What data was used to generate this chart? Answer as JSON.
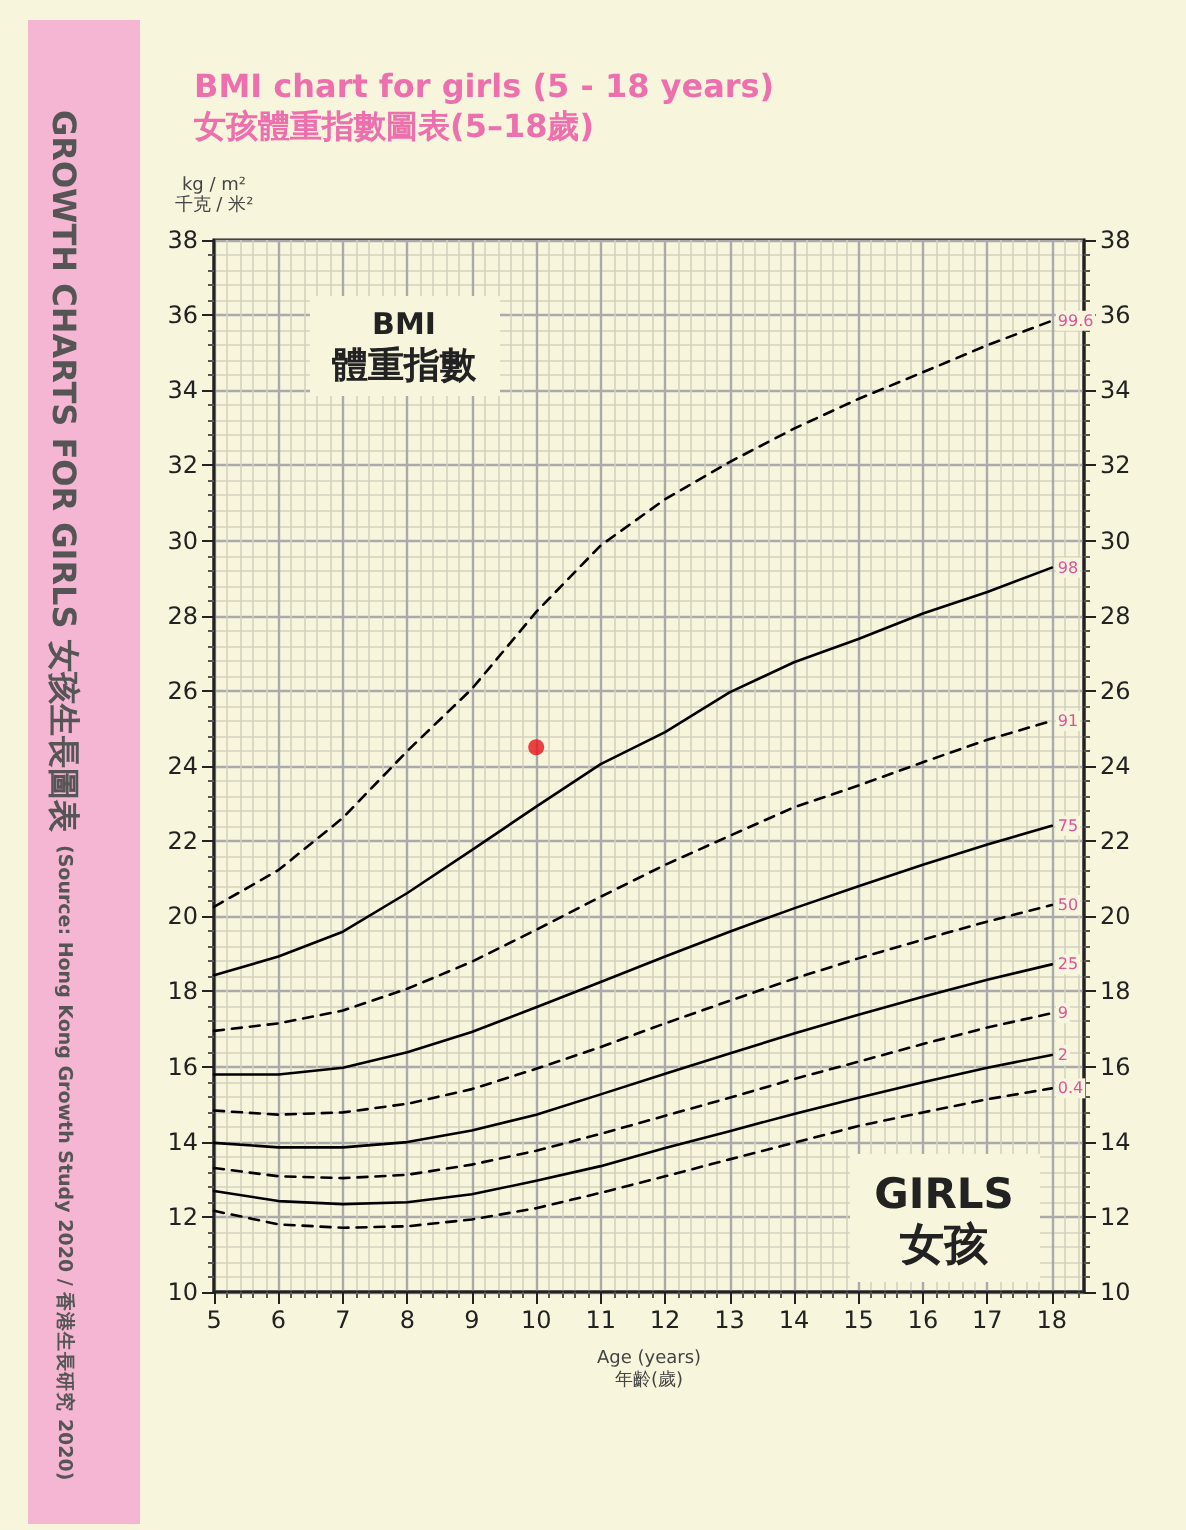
{
  "chart_data": {
    "type": "line",
    "title": "BMI chart for girls (5 - 18 years)",
    "subtitle": "女孩體重指數圖表(5–18歲)",
    "xlabel": "Age (years)\n年齡(歲)",
    "ylabel": "kg / m²\n千克 / 米²",
    "annotations": [
      "BMI",
      "體重指數",
      "GIRLS",
      "女孩",
      "GROWTH CHARTS FOR GIRLS 女孩生長圖表",
      "(Source: Hong Kong Growth Study 2020 / 香港生長研究 2020)"
    ],
    "x": [
      5,
      6,
      7,
      8,
      9,
      10,
      11,
      12,
      13,
      14,
      15,
      16,
      17,
      18
    ],
    "series": [
      {
        "name": "99.6",
        "color": "#000000",
        "line_style": "dashed",
        "values": [
          20.25,
          21.23,
          22.62,
          24.4,
          26.05,
          28.1,
          29.87,
          31.1,
          32.09,
          32.98,
          33.77,
          34.48,
          35.2,
          35.85
        ]
      },
      {
        "name": "98",
        "color": "#000000",
        "line_style": "solid",
        "values": [
          18.43,
          18.93,
          19.59,
          20.62,
          21.76,
          22.92,
          24.05,
          24.9,
          25.96,
          26.76,
          27.38,
          28.06,
          28.63,
          29.28
        ]
      },
      {
        "name": "91",
        "color": "#000000",
        "line_style": "dashed",
        "values": [
          16.95,
          17.15,
          17.49,
          18.07,
          18.79,
          19.64,
          20.52,
          21.37,
          22.14,
          22.9,
          23.48,
          24.1,
          24.7,
          25.2
        ]
      },
      {
        "name": "75",
        "color": "#000000",
        "line_style": "solid",
        "values": [
          15.79,
          15.79,
          15.97,
          16.38,
          16.92,
          17.58,
          18.25,
          18.93,
          19.59,
          20.21,
          20.8,
          21.37,
          21.91,
          22.41
        ]
      },
      {
        "name": "50",
        "color": "#000000",
        "line_style": "dashed",
        "values": [
          14.83,
          14.72,
          14.78,
          15.01,
          15.4,
          15.94,
          16.52,
          17.15,
          17.75,
          18.34,
          18.88,
          19.38,
          19.86,
          20.3
        ]
      },
      {
        "name": "25",
        "color": "#000000",
        "line_style": "solid",
        "values": [
          13.97,
          13.85,
          13.85,
          13.99,
          14.3,
          14.72,
          15.26,
          15.81,
          16.35,
          16.88,
          17.38,
          17.86,
          18.31,
          18.72
        ]
      },
      {
        "name": "9",
        "color": "#000000",
        "line_style": "dashed",
        "values": [
          13.3,
          13.08,
          13.03,
          13.12,
          13.39,
          13.76,
          14.21,
          14.69,
          15.17,
          15.67,
          16.13,
          16.6,
          17.04,
          17.42
        ]
      },
      {
        "name": "2",
        "color": "#000000",
        "line_style": "solid",
        "values": [
          12.69,
          12.42,
          12.34,
          12.39,
          12.6,
          12.96,
          13.35,
          13.83,
          14.28,
          14.74,
          15.17,
          15.58,
          15.97,
          16.31
        ]
      },
      {
        "name": "0.4",
        "color": "#000000",
        "line_style": "dashed",
        "values": [
          12.16,
          11.8,
          11.71,
          11.75,
          11.93,
          12.23,
          12.64,
          13.08,
          13.53,
          13.97,
          14.42,
          14.78,
          15.13,
          15.42
        ]
      },
      {
        "type": "scatter",
        "marker": "circle",
        "color": "#e8141c",
        "x": [
          10
        ],
        "values": [
          24.5
        ]
      }
    ],
    "marker": "none",
    "xlim": [
      5,
      18.5
    ],
    "xticks": [
      5,
      6,
      7,
      8,
      9,
      10,
      11,
      12,
      13,
      14,
      15,
      16,
      17,
      18
    ],
    "ylim": [
      10,
      38
    ],
    "yticks": [
      10,
      12,
      14,
      16,
      18,
      20,
      22,
      24,
      26,
      28,
      30,
      32,
      34,
      36,
      38
    ],
    "y2lim": [
      10,
      38
    ],
    "y2ticks": [
      10,
      12,
      14,
      16,
      18,
      20,
      22,
      24,
      26,
      28,
      30,
      32,
      34,
      36,
      38
    ],
    "grid": true
  }
}
